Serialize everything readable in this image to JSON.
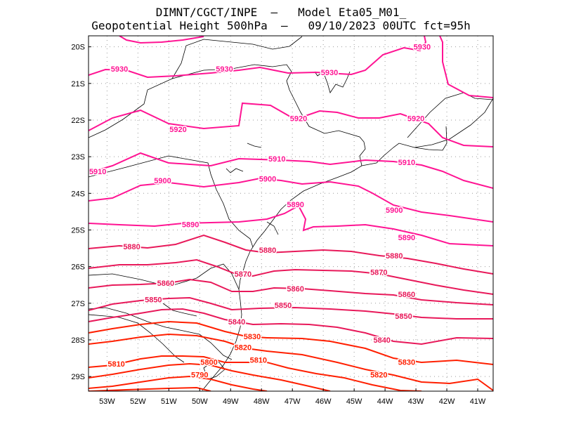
{
  "title_line1": "DIMNT/CGCT/INPE  –   Model Eta05_M01_",
  "title_line2": "Geopotential Height 500hPa  –   09/10/2023 00UTC fct=95h",
  "axes": {
    "lon_ticks": [
      "53W",
      "52W",
      "51W",
      "50W",
      "49W",
      "48W",
      "47W",
      "46W",
      "45W",
      "44W",
      "43W",
      "42W",
      "41W"
    ],
    "lat_ticks": [
      "20S",
      "21S",
      "22S",
      "23S",
      "24S",
      "25S",
      "26S",
      "27S",
      "28S",
      "29S"
    ]
  },
  "colors": {
    "high": "#ff1493",
    "mid": "#e8195a",
    "low": "#ff1f00",
    "coast": "#000000",
    "grid": "#9a9a9a"
  },
  "chart_data": {
    "type": "contour-map",
    "variable": "Geopotential Height 500hPa",
    "units": "gpm",
    "lon_range": [
      -53.6,
      -40.5
    ],
    "lat_range": [
      -29.4,
      -19.7
    ],
    "contour_interval": 10,
    "contours": [
      {
        "level": 5930,
        "labels": [
          {
            "text": "5930",
            "lon": -52.6,
            "lat": -20.6
          },
          {
            "text": "5930",
            "lon": -49.2,
            "lat": -20.6
          },
          {
            "text": "5930",
            "lon": -45.8,
            "lat": -20.7
          },
          {
            "text": "5930",
            "lon": -42.8,
            "lat": -20.0
          }
        ]
      },
      {
        "level": 5920,
        "labels": [
          {
            "text": "5920",
            "lon": -50.7,
            "lat": -22.25
          },
          {
            "text": "5920",
            "lon": -46.8,
            "lat": -21.95
          },
          {
            "text": "5920",
            "lon": -43.0,
            "lat": -21.95
          }
        ]
      },
      {
        "level": 5910,
        "labels": [
          {
            "text": "5910",
            "lon": -53.3,
            "lat": -23.4
          },
          {
            "text": "5910",
            "lon": -47.5,
            "lat": -23.05
          },
          {
            "text": "5910",
            "lon": -43.3,
            "lat": -23.15
          }
        ]
      },
      {
        "level": 5900,
        "labels": [
          {
            "text": "5900",
            "lon": -51.2,
            "lat": -23.65
          },
          {
            "text": "5900",
            "lon": -47.8,
            "lat": -23.6
          },
          {
            "text": "5900",
            "lon": -43.7,
            "lat": -24.45
          }
        ]
      },
      {
        "level": 5890,
        "labels": [
          {
            "text": "5890",
            "lon": -50.3,
            "lat": -24.85
          },
          {
            "text": "5890",
            "lon": -46.9,
            "lat": -24.3
          },
          {
            "text": "5890",
            "lon": -43.3,
            "lat": -25.2
          }
        ]
      },
      {
        "level": 5880,
        "labels": [
          {
            "text": "5880",
            "lon": -52.2,
            "lat": -25.45
          },
          {
            "text": "5880",
            "lon": -47.8,
            "lat": -25.55
          },
          {
            "text": "5880",
            "lon": -43.7,
            "lat": -25.7
          }
        ]
      },
      {
        "level": 5870,
        "labels": [
          {
            "text": "5870",
            "lon": -48.6,
            "lat": -26.2
          },
          {
            "text": "5870",
            "lon": -44.2,
            "lat": -26.15
          }
        ]
      },
      {
        "level": 5860,
        "labels": [
          {
            "text": "5860",
            "lon": -51.1,
            "lat": -26.45
          },
          {
            "text": "5860",
            "lon": -46.9,
            "lat": -26.6
          },
          {
            "text": "5860",
            "lon": -43.3,
            "lat": -26.75
          }
        ]
      },
      {
        "level": 5850,
        "labels": [
          {
            "text": "5850",
            "lon": -51.5,
            "lat": -26.9
          },
          {
            "text": "5850",
            "lon": -47.3,
            "lat": -27.05
          },
          {
            "text": "5850",
            "lon": -43.4,
            "lat": -27.35
          }
        ]
      },
      {
        "level": 5840,
        "labels": [
          {
            "text": "5840",
            "lon": -48.8,
            "lat": -27.5
          },
          {
            "text": "5840",
            "lon": -44.1,
            "lat": -28.0
          }
        ]
      },
      {
        "level": 5830,
        "labels": [
          {
            "text": "5830",
            "lon": -48.3,
            "lat": -27.9
          },
          {
            "text": "5830",
            "lon": -43.3,
            "lat": -28.6
          }
        ]
      },
      {
        "level": 5820,
        "labels": [
          {
            "text": "5820",
            "lon": -48.6,
            "lat": -28.2
          },
          {
            "text": "5820",
            "lon": -44.2,
            "lat": -28.95
          }
        ]
      },
      {
        "level": 5810,
        "labels": [
          {
            "text": "5810",
            "lon": -52.7,
            "lat": -28.65
          },
          {
            "text": "5810",
            "lon": -48.1,
            "lat": -28.55
          }
        ]
      },
      {
        "level": 5800,
        "labels": [
          {
            "text": "5800",
            "lon": -49.7,
            "lat": -28.6
          }
        ]
      },
      {
        "level": 5790,
        "labels": [
          {
            "text": "5790",
            "lon": -50.0,
            "lat": -28.95
          }
        ]
      }
    ]
  }
}
